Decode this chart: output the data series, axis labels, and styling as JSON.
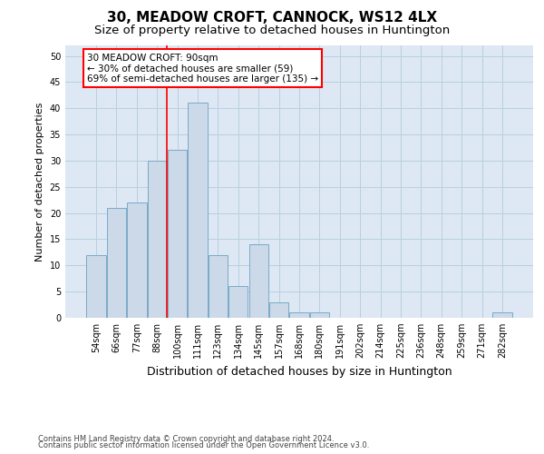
{
  "title": "30, MEADOW CROFT, CANNOCK, WS12 4LX",
  "subtitle": "Size of property relative to detached houses in Huntington",
  "xlabel": "Distribution of detached houses by size in Huntington",
  "ylabel": "Number of detached properties",
  "footer_line1": "Contains HM Land Registry data © Crown copyright and database right 2024.",
  "footer_line2": "Contains public sector information licensed under the Open Government Licence v3.0.",
  "categories": [
    "54sqm",
    "66sqm",
    "77sqm",
    "88sqm",
    "100sqm",
    "111sqm",
    "123sqm",
    "134sqm",
    "145sqm",
    "157sqm",
    "168sqm",
    "180sqm",
    "191sqm",
    "202sqm",
    "214sqm",
    "225sqm",
    "236sqm",
    "248sqm",
    "259sqm",
    "271sqm",
    "282sqm"
  ],
  "values": [
    12,
    21,
    22,
    30,
    32,
    41,
    12,
    6,
    14,
    3,
    1,
    1,
    0,
    0,
    0,
    0,
    0,
    0,
    0,
    0,
    1
  ],
  "bar_color": "#ccd9e8",
  "bar_edge_color": "#7aaac8",
  "background_color": "#ffffff",
  "axes_bg_color": "#dde8f4",
  "grid_color": "#b8cfe0",
  "red_line_x": 3.5,
  "ylim": [
    0,
    52
  ],
  "yticks": [
    0,
    5,
    10,
    15,
    20,
    25,
    30,
    35,
    40,
    45,
    50
  ],
  "annotation_title": "30 MEADOW CROFT: 90sqm",
  "annotation_line1": "← 30% of detached houses are smaller (59)",
  "annotation_line2": "69% of semi-detached houses are larger (135) →",
  "title_fontsize": 11,
  "subtitle_fontsize": 9.5,
  "tick_fontsize": 7,
  "ylabel_fontsize": 8,
  "xlabel_fontsize": 9,
  "annotation_fontsize": 7.5,
  "footer_fontsize": 6
}
